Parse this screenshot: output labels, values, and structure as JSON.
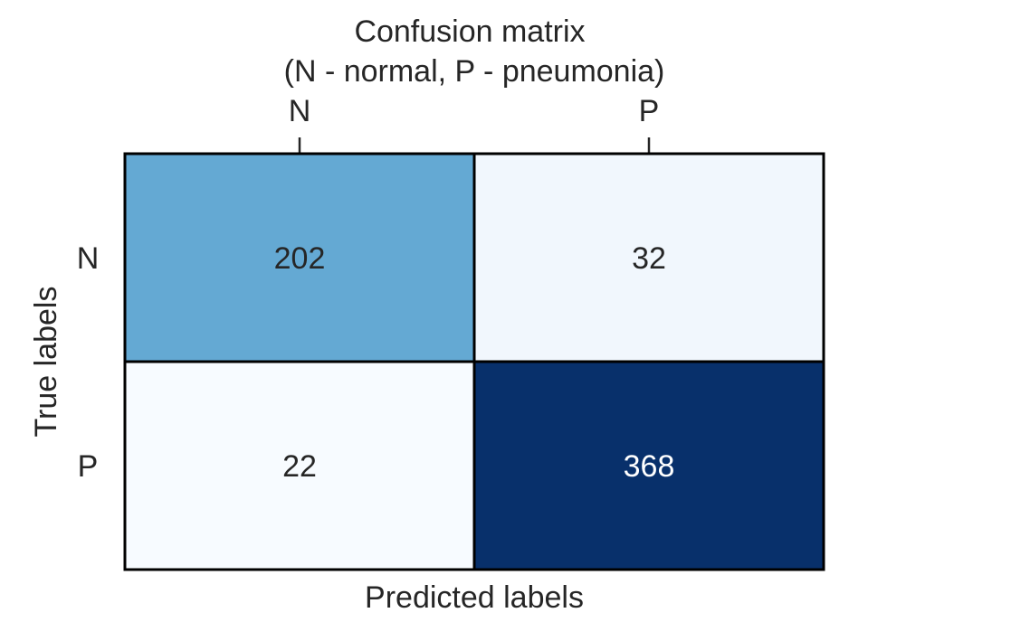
{
  "chart_data": {
    "type": "heatmap",
    "title": "Confusion matrix",
    "subtitle": "(N - normal, P - pneumonia)",
    "xlabel": "Predicted labels",
    "ylabel": "True labels",
    "x_categories": [
      "N",
      "P"
    ],
    "y_categories": [
      "N",
      "P"
    ],
    "x_axis_position": "top",
    "values": [
      [
        202,
        32
      ],
      [
        22,
        368
      ]
    ],
    "colormap": "Blues",
    "colorbar": false,
    "grid": false,
    "colors": {
      "text_dark": "#262626",
      "text_light": "#ffffff",
      "cell_border": "#000000"
    }
  }
}
